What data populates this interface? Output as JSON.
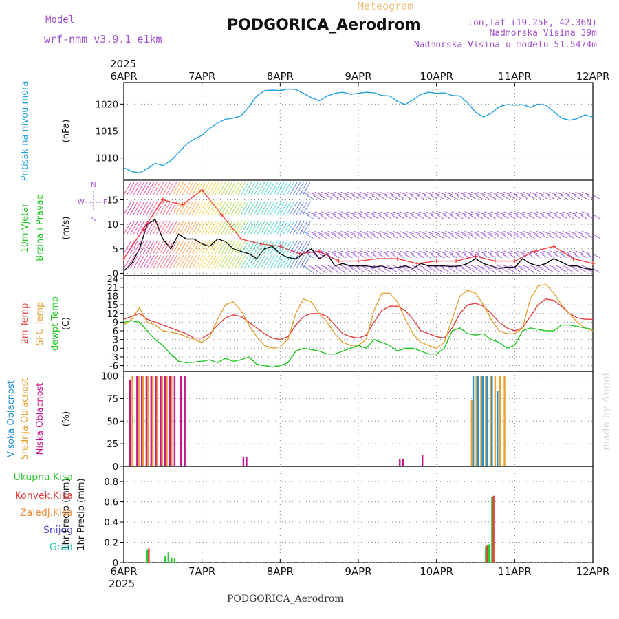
{
  "header": {
    "model_label": "Model",
    "model_name": "wrf-nmm_v3.9.1 e1km",
    "meteogram": "Meteogram",
    "station": "PODGORICA_Aerodrom",
    "lonlat": "lon,lat (19.25E, 42.36N)",
    "elevation": "Nadmorska Visina 39m",
    "model_elevation": "Nadmorska Visina u modelu 51.5474m",
    "year_top": "2025",
    "year_bottom": "2025",
    "footer_station": "PODGORICA_Aerodrom",
    "credit": "made by Angel"
  },
  "colors": {
    "pressure": "#1ea0e6",
    "wind_speed": "#000000",
    "wind_gust": "#ff3c3c",
    "temp2m": "#e43c3c",
    "sfc_temp": "#e8a030",
    "dewpt": "#1ec81e",
    "cloud_high": "#1e90d6",
    "cloud_mid": "#e8a030",
    "cloud_low": "#c8148c",
    "precip_total": "#2ec82e",
    "precip_conv": "#e83c3c",
    "precip_frozen": "#f08c3c",
    "snow": "#5050d0",
    "graupel": "#28c8b4",
    "title_purple": "#a050d0",
    "meteogram_orange": "#f0c080"
  },
  "chart_data": [
    {
      "type": "line",
      "id": "pressure",
      "ylabel": "(hPa)",
      "side_labels": [
        "Pritisak na nivou mora"
      ],
      "x_days": [
        "6APR",
        "7APR",
        "8APR",
        "9APR",
        "10APR",
        "11APR",
        "12APR"
      ],
      "yticks": [
        1010,
        1015,
        1020
      ],
      "ylim": [
        1006,
        1024
      ],
      "series": [
        {
          "key": "pressure",
          "x": [
            0,
            0.1,
            0.2,
            0.3,
            0.4,
            0.5,
            0.6,
            0.7,
            0.8,
            0.9,
            1.0,
            1.1,
            1.2,
            1.3,
            1.4,
            1.5,
            1.6,
            1.7,
            1.8,
            1.9,
            2.0,
            2.1,
            2.2,
            2.3,
            2.4,
            2.5,
            2.6,
            2.7,
            2.8,
            2.9,
            3.0,
            3.1,
            3.2,
            3.3,
            3.4,
            3.5,
            3.6,
            3.7,
            3.8,
            3.9,
            4.0,
            4.1,
            4.2,
            4.3,
            4.4,
            4.5,
            4.6,
            4.7,
            4.8,
            4.9,
            5.0,
            5.1,
            5.2,
            5.3,
            5.4,
            5.5,
            5.6,
            5.7,
            5.8,
            5.9,
            6.0
          ],
          "values": [
            1008.2,
            1007.5,
            1007.2,
            1008,
            1009,
            1008.6,
            1009.5,
            1011,
            1012.5,
            1013.5,
            1014.2,
            1015.5,
            1016.5,
            1017.2,
            1017.4,
            1017.8,
            1019.5,
            1021.5,
            1022.5,
            1022.6,
            1022.5,
            1022.8,
            1022.7,
            1022,
            1021.2,
            1020.6,
            1021.5,
            1022,
            1022.2,
            1021.8,
            1022,
            1022.2,
            1022.1,
            1021.6,
            1021.5,
            1020.5,
            1019.9,
            1020.8,
            1021.8,
            1022.2,
            1022,
            1022.1,
            1021.6,
            1021.5,
            1020.2,
            1018.5,
            1017.6,
            1018.3,
            1019.5,
            1019.9,
            1019.8,
            1019.9,
            1019.4,
            1020,
            1019.8,
            1018.6,
            1017.4,
            1017,
            1017.3,
            1018,
            1017.6
          ]
        }
      ]
    },
    {
      "type": "line",
      "id": "wind",
      "ylabel": "(m/s)",
      "side_labels": [
        "10m Vjetar",
        "Brzina i Pravac"
      ],
      "compass": {
        "n": "N",
        "s": "S",
        "w": "W",
        "e": "E"
      },
      "yticks": [
        0,
        5,
        10,
        15
      ],
      "ylim": [
        -0.5,
        19
      ],
      "series": [
        {
          "key": "wind_speed",
          "name": "",
          "x": [
            0,
            0.1,
            0.2,
            0.3,
            0.4,
            0.5,
            0.6,
            0.7,
            0.8,
            0.9,
            1.0,
            1.1,
            1.2,
            1.3,
            1.4,
            1.5,
            1.6,
            1.7,
            1.8,
            1.9,
            2.0,
            2.1,
            2.2,
            2.3,
            2.4,
            2.5,
            2.6,
            2.7,
            2.8,
            2.9,
            3.0,
            3.1,
            3.2,
            3.3,
            3.4,
            3.5,
            3.6,
            3.7,
            3.8,
            3.9,
            4.0,
            4.1,
            4.2,
            4.3,
            4.4,
            4.5,
            4.6,
            4.7,
            4.8,
            4.9,
            5.0,
            5.1,
            5.2,
            5.3,
            5.4,
            5.5,
            5.6,
            5.7,
            5.8,
            5.9,
            6.0
          ],
          "values": [
            0.5,
            2,
            5,
            10,
            11,
            7,
            5,
            8,
            7,
            7,
            6,
            5.5,
            7,
            6.5,
            5,
            4.5,
            4,
            3,
            5,
            5.5,
            4,
            3.2,
            3,
            4,
            5,
            3,
            4,
            1.5,
            2,
            1.5,
            1.5,
            1.5,
            1.3,
            1.5,
            1,
            1.2,
            1.5,
            1,
            2,
            1.5,
            1.5,
            1.5,
            1.4,
            1.5,
            2,
            3,
            2,
            1.5,
            1,
            1.3,
            1.2,
            3,
            2,
            1.5,
            2,
            3,
            2.3,
            1.5,
            1.5,
            1,
            0.8
          ]
        },
        {
          "key": "wind_gust",
          "name": "",
          "x": [
            0,
            0.25,
            0.5,
            0.75,
            1.0,
            1.25,
            1.5,
            1.75,
            2.0,
            2.25,
            2.5,
            2.75,
            3.0,
            3.25,
            3.5,
            3.75,
            4.0,
            4.25,
            4.5,
            4.75,
            5.0,
            5.25,
            5.5,
            5.75,
            6.0
          ],
          "values": [
            3,
            9,
            15,
            14,
            17,
            12,
            7,
            6,
            5.5,
            4,
            4.5,
            2.5,
            2.5,
            3,
            3,
            2,
            2.5,
            2.5,
            3.5,
            2.5,
            2.5,
            4.5,
            5.5,
            3,
            2
          ]
        }
      ]
    },
    {
      "type": "line",
      "id": "temperature",
      "ylabel": "(C)",
      "side_labels": [
        "2m Temp",
        "SFC Temp",
        "dewpt Temp"
      ],
      "yticks": [
        -6,
        -3,
        0,
        3,
        6,
        9,
        12,
        15,
        18,
        21,
        24
      ],
      "ylim": [
        -8,
        25
      ],
      "series": [
        {
          "key": "temp2m",
          "x": [
            0,
            0.1,
            0.2,
            0.3,
            0.4,
            0.5,
            0.6,
            0.7,
            0.8,
            0.9,
            1.0,
            1.1,
            1.2,
            1.3,
            1.4,
            1.5,
            1.6,
            1.7,
            1.8,
            1.9,
            2.0,
            2.1,
            2.2,
            2.3,
            2.4,
            2.5,
            2.6,
            2.7,
            2.8,
            2.9,
            3.0,
            3.1,
            3.2,
            3.3,
            3.4,
            3.5,
            3.6,
            3.7,
            3.8,
            3.9,
            4.0,
            4.1,
            4.2,
            4.3,
            4.4,
            4.5,
            4.6,
            4.7,
            4.8,
            4.9,
            5.0,
            5.1,
            5.2,
            5.3,
            5.4,
            5.5,
            5.6,
            5.7,
            5.8,
            5.9,
            6.0
          ],
          "values": [
            10,
            11,
            12,
            10,
            9,
            8,
            7,
            6,
            5,
            3.5,
            3.5,
            5,
            8,
            10.5,
            11.5,
            11,
            9,
            7,
            5,
            3.5,
            3,
            4,
            8,
            11,
            12,
            12,
            11,
            8,
            5,
            4,
            3.5,
            4.5,
            9,
            13,
            14.5,
            14.5,
            13,
            10,
            6,
            5,
            4,
            3.5,
            7,
            12,
            15,
            15.5,
            14.5,
            12,
            9,
            7,
            6,
            7,
            11,
            15,
            17,
            16.5,
            14.5,
            12,
            10.5,
            10,
            10
          ]
        },
        {
          "key": "sfc_temp",
          "x": [
            0,
            0.1,
            0.2,
            0.3,
            0.4,
            0.5,
            0.6,
            0.7,
            0.8,
            0.9,
            1.0,
            1.1,
            1.2,
            1.3,
            1.4,
            1.5,
            1.6,
            1.7,
            1.8,
            1.9,
            2.0,
            2.1,
            2.2,
            2.3,
            2.4,
            2.5,
            2.6,
            2.7,
            2.8,
            2.9,
            3.0,
            3.1,
            3.2,
            3.3,
            3.4,
            3.5,
            3.6,
            3.7,
            3.8,
            3.9,
            4.0,
            4.1,
            4.2,
            4.3,
            4.4,
            4.5,
            4.6,
            4.7,
            4.8,
            4.9,
            5.0,
            5.1,
            5.2,
            5.3,
            5.4,
            5.5,
            5.6,
            5.7,
            5.8,
            5.9,
            6.0
          ],
          "values": [
            8,
            10,
            14,
            9,
            8,
            6,
            5.5,
            5,
            4,
            3,
            2,
            4,
            10,
            15,
            16,
            13,
            8,
            4,
            1,
            0,
            0.5,
            3,
            12,
            17,
            16,
            12,
            9,
            5,
            2,
            1,
            1,
            3,
            13,
            19,
            19,
            16,
            10,
            5,
            2,
            1,
            0,
            2,
            10,
            18,
            20,
            19,
            15,
            10,
            6,
            5,
            5,
            7,
            17,
            21.5,
            22,
            19,
            15,
            12,
            9,
            7,
            6
          ]
        },
        {
          "key": "dewpt",
          "x": [
            0,
            0.1,
            0.2,
            0.3,
            0.4,
            0.5,
            0.6,
            0.7,
            0.8,
            0.9,
            1.0,
            1.1,
            1.2,
            1.3,
            1.4,
            1.5,
            1.6,
            1.7,
            1.8,
            1.9,
            2.0,
            2.1,
            2.2,
            2.3,
            2.4,
            2.5,
            2.6,
            2.7,
            2.8,
            2.9,
            3.0,
            3.1,
            3.2,
            3.3,
            3.4,
            3.5,
            3.6,
            3.7,
            3.8,
            3.9,
            4.0,
            4.1,
            4.2,
            4.3,
            4.4,
            4.5,
            4.6,
            4.7,
            4.8,
            4.9,
            5.0,
            5.1,
            5.2,
            5.3,
            5.4,
            5.5,
            5.6,
            5.7,
            5.8,
            5.9,
            6.0
          ],
          "values": [
            9,
            9.5,
            9,
            6,
            3,
            1,
            -2,
            -4.5,
            -5,
            -4.8,
            -4.5,
            -4,
            -5,
            -3.5,
            -4.5,
            -4,
            -3,
            -5.5,
            -6,
            -6.5,
            -6,
            -5,
            -1,
            0,
            -0.5,
            -1,
            -2,
            -2,
            -1,
            0,
            1,
            0,
            3,
            2,
            1,
            -1,
            0,
            0,
            -1,
            -2,
            -2,
            0,
            6,
            7,
            5,
            4.5,
            5,
            3,
            2,
            0,
            1,
            6,
            7,
            6.5,
            6,
            6,
            8,
            8,
            7.5,
            7,
            6.5
          ]
        }
      ]
    },
    {
      "type": "bar",
      "id": "clouds",
      "ylabel": "(%)",
      "side_labels": [
        "Visoka Oblacnost",
        "Srednja Oblacnost",
        "Niska Oblacnost"
      ],
      "yticks": [
        0,
        25,
        50,
        75,
        100
      ],
      "ylim": [
        0,
        105
      ],
      "series": [
        {
          "key": "cloud_low",
          "x": [
            0.08,
            0.17,
            0.23,
            0.29,
            0.35,
            0.41,
            0.47,
            0.53,
            0.59,
            0.65,
            0.73,
            0.78,
            1.53,
            1.57,
            3.53,
            3.57,
            3.82
          ],
          "values": [
            96,
            100,
            100,
            100,
            100,
            100,
            100,
            100,
            100,
            100,
            100,
            100,
            10,
            10,
            8,
            8,
            13
          ]
        },
        {
          "key": "cloud_mid",
          "x": [
            0.11,
            0.19,
            0.25,
            0.31,
            0.37,
            0.43,
            0.49,
            0.55,
            0.61,
            4.45,
            4.51,
            4.57,
            4.63,
            4.69,
            4.75,
            4.81,
            4.87
          ],
          "values": [
            100,
            100,
            100,
            100,
            100,
            100,
            100,
            100,
            100,
            73,
            100,
            100,
            100,
            100,
            100,
            100,
            100
          ]
        },
        {
          "key": "cloud_high",
          "x": [
            4.47,
            4.53,
            4.59,
            4.65,
            4.71,
            4.78
          ],
          "values": [
            100,
            100,
            100,
            100,
            100,
            83
          ]
        }
      ]
    },
    {
      "type": "bar",
      "id": "precip",
      "ylabel": "1hr Precip (mm)",
      "side_labels": [
        "Ukupna Kisa",
        "Konvek.Kisa",
        "Zaledj.Kisa",
        "Snijeg",
        "Grad"
      ],
      "yticks": [
        0,
        0.2,
        0.4,
        0.6,
        0.8
      ],
      "ylim": [
        0,
        0.95
      ],
      "series": [
        {
          "key": "precip_total",
          "x": [
            0.3,
            0.53,
            0.57,
            0.61,
            0.65,
            4.63,
            4.67,
            4.71
          ],
          "values": [
            0.13,
            0.06,
            0.1,
            0.05,
            0.04,
            0.16,
            0.18,
            0.65
          ]
        },
        {
          "key": "precip_conv",
          "x": [
            0.32,
            4.65,
            4.73
          ],
          "values": [
            0.14,
            0.17,
            0.66
          ]
        }
      ]
    }
  ]
}
